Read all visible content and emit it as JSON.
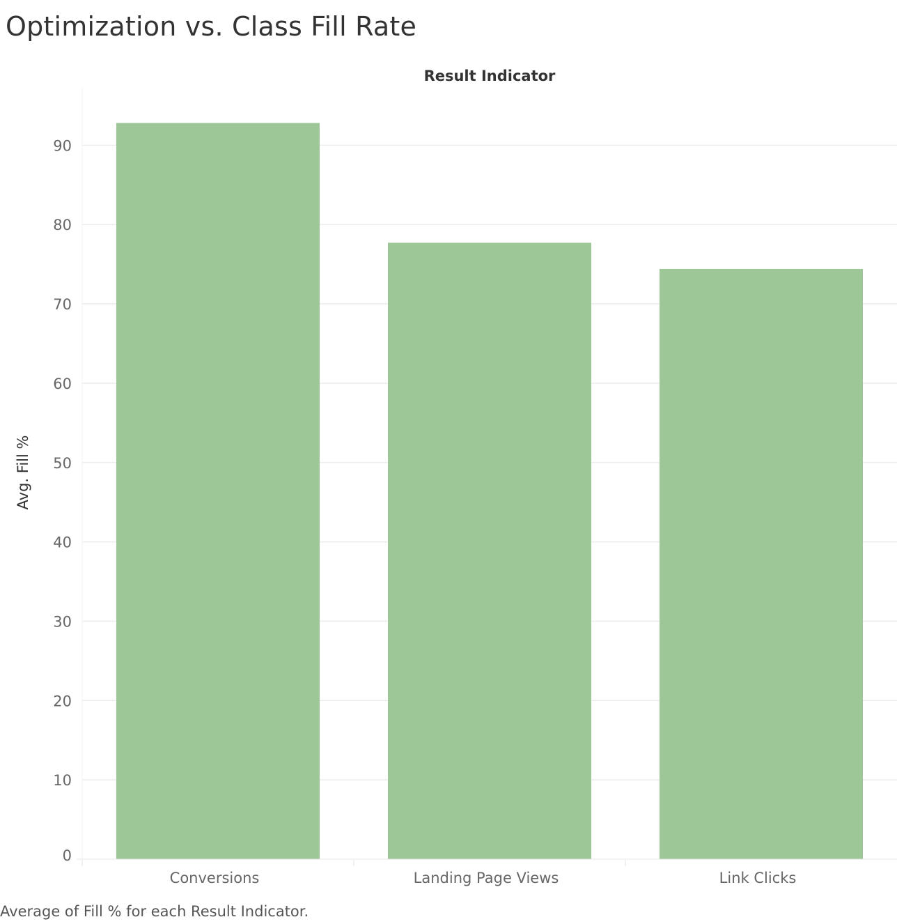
{
  "title": "Optimization vs. Class Fill Rate",
  "caption": "Average of Fill % for each Result Indicator.",
  "colors": {
    "bar": "#9ec797",
    "grid": "#ececec",
    "axis_text": "#666666",
    "label_text": "#333333"
  },
  "chart_data": {
    "type": "bar",
    "title": "Optimization vs. Class Fill Rate",
    "xlabel": "Result Indicator",
    "xlabel_position": "top",
    "ylabel": "Avg. Fill %",
    "categories": [
      "Conversions",
      "Landing Page Views",
      "Link Clicks"
    ],
    "values": [
      92.8,
      77.7,
      74.4
    ],
    "ylim": [
      0,
      97
    ],
    "yticks": [
      0,
      10,
      20,
      30,
      40,
      50,
      60,
      70,
      80,
      90
    ],
    "grid": "horizontal",
    "legend": "none"
  }
}
